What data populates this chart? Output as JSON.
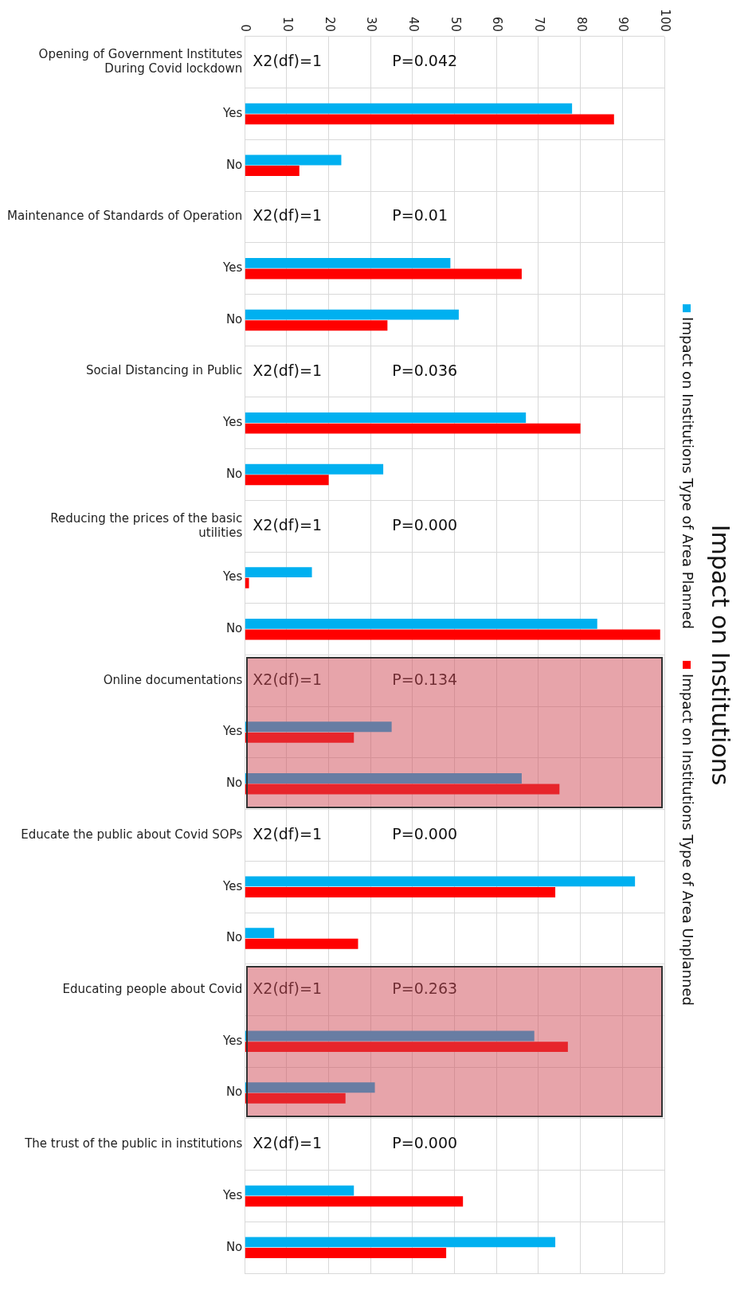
{
  "chart_data": {
    "type": "bar",
    "orientation": "horizontal",
    "title": "Impact on Institutions",
    "categories": [
      "Opening of Government Institutes During Covid lockdown",
      "Yes",
      "No",
      "Maintenance of Standards of Operation",
      "Yes",
      "No",
      "Social Distancing in Public",
      "Yes",
      "No",
      "Reducing the prices of the basic utilities",
      "Yes",
      "No",
      "Online documentations",
      "Yes",
      "No",
      "Educate the public about Covid SOPs",
      "Yes",
      "No",
      "Educating people about Covid",
      "Yes",
      "No",
      "The trust of the public in institutions",
      "Yes",
      "No"
    ],
    "series": [
      {
        "name": "Impact on Institutions Type of Area Planned",
        "color": "#00b0f0",
        "values": [
          null,
          78,
          23,
          null,
          49,
          51,
          null,
          67,
          33,
          null,
          16,
          84,
          null,
          35,
          66,
          null,
          93,
          7,
          null,
          69,
          31,
          null,
          26,
          74
        ]
      },
      {
        "name": "Impact on Institutions Type of Area Unplanned",
        "color": "#ff0000",
        "values": [
          null,
          88,
          13,
          null,
          66,
          34,
          null,
          80,
          20,
          null,
          1,
          99,
          null,
          26,
          75,
          null,
          74,
          27,
          null,
          77,
          24,
          null,
          52,
          48
        ]
      }
    ],
    "xlim": [
      0,
      100
    ],
    "xticks": [
      0,
      10,
      20,
      30,
      40,
      50,
      60,
      70,
      80,
      90,
      100
    ],
    "grid": true,
    "legend": "right",
    "annotations": [
      "X2(df)=1",
      "P=0.042",
      "X2(df)=1",
      "P=0.01",
      "X2(df)=1",
      "P=0.036",
      "X2(df)=1",
      "P=0.000",
      "X2(df)=1",
      "P=0.134",
      "X2(df)=1",
      "P=0.000",
      "X2(df)=1",
      "P=0.263",
      "X2(df)=1",
      "P=0.000"
    ]
  }
}
